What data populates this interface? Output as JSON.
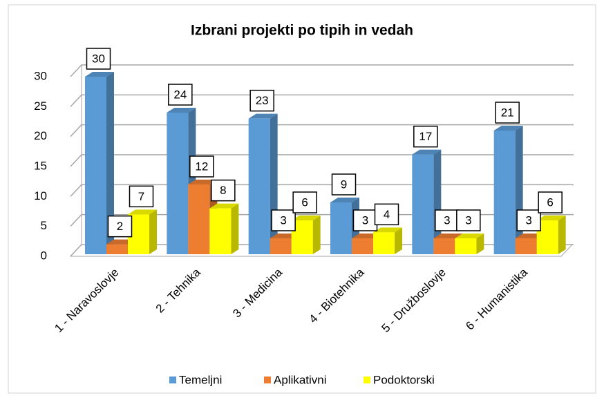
{
  "chart_data": {
    "type": "bar3d",
    "title": "Izbrani projekti po tipih in vedah",
    "categories": [
      "1 - Naravoslovje",
      "2 - Tehnika",
      "3 - Medicina",
      "4 - Biotehnika",
      "5 - Družboslovje",
      "6 - Humanistika"
    ],
    "series": [
      {
        "name": "Temeljni",
        "color": "#5b9bd5",
        "values": [
          30,
          24,
          23,
          9,
          17,
          21
        ]
      },
      {
        "name": "Aplikativni",
        "color": "#ed7d31",
        "values": [
          2,
          12,
          3,
          3,
          3,
          3
        ]
      },
      {
        "name": "Podoktorski",
        "color": "#ffff00",
        "values": [
          7,
          8,
          6,
          4,
          3,
          6
        ]
      }
    ],
    "ylim": [
      0,
      30
    ],
    "yticks": [
      0,
      5,
      10,
      15,
      20,
      25,
      30
    ],
    "grid": true,
    "legend": "bottom"
  }
}
